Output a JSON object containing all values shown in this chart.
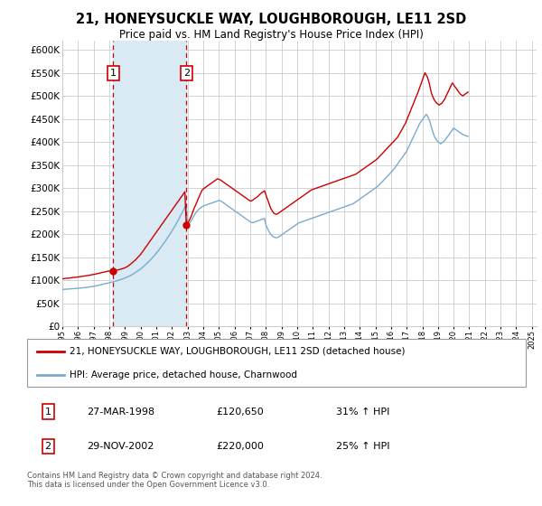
{
  "title": "21, HONEYSUCKLE WAY, LOUGHBOROUGH, LE11 2SD",
  "subtitle": "Price paid vs. HM Land Registry's House Price Index (HPI)",
  "footer": "Contains HM Land Registry data © Crown copyright and database right 2024.\nThis data is licensed under the Open Government Licence v3.0.",
  "legend_line1": "21, HONEYSUCKLE WAY, LOUGHBOROUGH, LE11 2SD (detached house)",
  "legend_line2": "HPI: Average price, detached house, Charnwood",
  "purchase1_date": "27-MAR-1998",
  "purchase1_price": "£120,650",
  "purchase1_hpi": "31% ↑ HPI",
  "purchase1_year": 1998.25,
  "purchase1_value": 120650,
  "purchase2_date": "29-NOV-2002",
  "purchase2_price": "£220,000",
  "purchase2_hpi": "25% ↑ HPI",
  "purchase2_year": 2002.92,
  "purchase2_value": 220000,
  "xlim": [
    1995,
    2025.3
  ],
  "ylim": [
    0,
    620000
  ],
  "yticks": [
    0,
    50000,
    100000,
    150000,
    200000,
    250000,
    300000,
    350000,
    400000,
    450000,
    500000,
    550000,
    600000
  ],
  "ytick_labels": [
    "£0",
    "£50K",
    "£100K",
    "£150K",
    "£200K",
    "£250K",
    "£300K",
    "£350K",
    "£400K",
    "£450K",
    "£500K",
    "£550K",
    "£600K"
  ],
  "background_color": "#ffffff",
  "grid_color": "#cccccc",
  "red_line_color": "#cc0000",
  "blue_line_color": "#7aabcf",
  "shade_color": "#daeaf5",
  "dashed_line_color": "#cc0000",
  "marker_box_color": "#cc0000",
  "years": [
    1995.0,
    1995.08,
    1995.17,
    1995.25,
    1995.33,
    1995.42,
    1995.5,
    1995.58,
    1995.67,
    1995.75,
    1995.83,
    1995.92,
    1996.0,
    1996.08,
    1996.17,
    1996.25,
    1996.33,
    1996.42,
    1996.5,
    1996.58,
    1996.67,
    1996.75,
    1996.83,
    1996.92,
    1997.0,
    1997.08,
    1997.17,
    1997.25,
    1997.33,
    1997.42,
    1997.5,
    1997.58,
    1997.67,
    1997.75,
    1997.83,
    1997.92,
    1998.0,
    1998.08,
    1998.17,
    1998.25,
    1998.33,
    1998.42,
    1998.5,
    1998.58,
    1998.67,
    1998.75,
    1998.83,
    1998.92,
    1999.0,
    1999.08,
    1999.17,
    1999.25,
    1999.33,
    1999.42,
    1999.5,
    1999.58,
    1999.67,
    1999.75,
    1999.83,
    1999.92,
    2000.0,
    2000.08,
    2000.17,
    2000.25,
    2000.33,
    2000.42,
    2000.5,
    2000.58,
    2000.67,
    2000.75,
    2000.83,
    2000.92,
    2001.0,
    2001.08,
    2001.17,
    2001.25,
    2001.33,
    2001.42,
    2001.5,
    2001.58,
    2001.67,
    2001.75,
    2001.83,
    2001.92,
    2002.0,
    2002.08,
    2002.17,
    2002.25,
    2002.33,
    2002.42,
    2002.5,
    2002.58,
    2002.67,
    2002.75,
    2002.83,
    2002.92,
    2003.0,
    2003.08,
    2003.17,
    2003.25,
    2003.33,
    2003.42,
    2003.5,
    2003.58,
    2003.67,
    2003.75,
    2003.83,
    2003.92,
    2004.0,
    2004.08,
    2004.17,
    2004.25,
    2004.33,
    2004.42,
    2004.5,
    2004.58,
    2004.67,
    2004.75,
    2004.83,
    2004.92,
    2005.0,
    2005.08,
    2005.17,
    2005.25,
    2005.33,
    2005.42,
    2005.5,
    2005.58,
    2005.67,
    2005.75,
    2005.83,
    2005.92,
    2006.0,
    2006.08,
    2006.17,
    2006.25,
    2006.33,
    2006.42,
    2006.5,
    2006.58,
    2006.67,
    2006.75,
    2006.83,
    2006.92,
    2007.0,
    2007.08,
    2007.17,
    2007.25,
    2007.33,
    2007.42,
    2007.5,
    2007.58,
    2007.67,
    2007.75,
    2007.83,
    2007.92,
    2008.0,
    2008.08,
    2008.17,
    2008.25,
    2008.33,
    2008.42,
    2008.5,
    2008.58,
    2008.67,
    2008.75,
    2008.83,
    2008.92,
    2009.0,
    2009.08,
    2009.17,
    2009.25,
    2009.33,
    2009.42,
    2009.5,
    2009.58,
    2009.67,
    2009.75,
    2009.83,
    2009.92,
    2010.0,
    2010.08,
    2010.17,
    2010.25,
    2010.33,
    2010.42,
    2010.5,
    2010.58,
    2010.67,
    2010.75,
    2010.83,
    2010.92,
    2011.0,
    2011.08,
    2011.17,
    2011.25,
    2011.33,
    2011.42,
    2011.5,
    2011.58,
    2011.67,
    2011.75,
    2011.83,
    2011.92,
    2012.0,
    2012.08,
    2012.17,
    2012.25,
    2012.33,
    2012.42,
    2012.5,
    2012.58,
    2012.67,
    2012.75,
    2012.83,
    2012.92,
    2013.0,
    2013.08,
    2013.17,
    2013.25,
    2013.33,
    2013.42,
    2013.5,
    2013.58,
    2013.67,
    2013.75,
    2013.83,
    2013.92,
    2014.0,
    2014.08,
    2014.17,
    2014.25,
    2014.33,
    2014.42,
    2014.5,
    2014.58,
    2014.67,
    2014.75,
    2014.83,
    2014.92,
    2015.0,
    2015.08,
    2015.17,
    2015.25,
    2015.33,
    2015.42,
    2015.5,
    2015.58,
    2015.67,
    2015.75,
    2015.83,
    2015.92,
    2016.0,
    2016.08,
    2016.17,
    2016.25,
    2016.33,
    2016.42,
    2016.5,
    2016.58,
    2016.67,
    2016.75,
    2016.83,
    2016.92,
    2017.0,
    2017.08,
    2017.17,
    2017.25,
    2017.33,
    2017.42,
    2017.5,
    2017.58,
    2017.67,
    2017.75,
    2017.83,
    2017.92,
    2018.0,
    2018.08,
    2018.17,
    2018.25,
    2018.33,
    2018.42,
    2018.5,
    2018.58,
    2018.67,
    2018.75,
    2018.83,
    2018.92,
    2019.0,
    2019.08,
    2019.17,
    2019.25,
    2019.33,
    2019.42,
    2019.5,
    2019.58,
    2019.67,
    2019.75,
    2019.83,
    2019.92,
    2020.0,
    2020.08,
    2020.17,
    2020.25,
    2020.33,
    2020.42,
    2020.5,
    2020.58,
    2020.67,
    2020.75,
    2020.83,
    2020.92,
    2021.0,
    2021.08,
    2021.17,
    2021.25,
    2021.33,
    2021.42,
    2021.5,
    2021.58,
    2021.67,
    2021.75,
    2021.83,
    2021.92,
    2022.0,
    2022.08,
    2022.17,
    2022.25,
    2022.33,
    2022.42,
    2022.5,
    2022.58,
    2022.67,
    2022.75,
    2022.83,
    2022.92,
    2023.0,
    2023.08,
    2023.17,
    2023.25,
    2023.33,
    2023.42,
    2023.5,
    2023.58,
    2023.67,
    2023.75,
    2023.83,
    2023.92,
    2024.0,
    2024.08,
    2024.17,
    2024.25,
    2024.33,
    2024.42,
    2024.5,
    2024.58,
    2024.67,
    2024.75,
    2024.83,
    2024.92,
    2025.0
  ],
  "red_values": [
    103000,
    103500,
    104000,
    104200,
    104500,
    104800,
    105000,
    105500,
    106000,
    106200,
    106500,
    106800,
    107000,
    107500,
    108000,
    108300,
    108800,
    109200,
    109800,
    110200,
    110500,
    111000,
    111500,
    112000,
    112500,
    113000,
    113800,
    114500,
    115000,
    115800,
    116500,
    117000,
    117800,
    118500,
    119000,
    119800,
    120000,
    120200,
    120400,
    120650,
    121000,
    121500,
    122000,
    122800,
    123500,
    124200,
    125000,
    126000,
    127000,
    128500,
    130000,
    132000,
    134000,
    136500,
    139000,
    141500,
    144000,
    147000,
    150000,
    153000,
    156000,
    160000,
    164000,
    168000,
    172000,
    176000,
    180000,
    184000,
    188000,
    192000,
    196000,
    200000,
    204000,
    208000,
    212000,
    216000,
    220000,
    224000,
    228000,
    232000,
    236000,
    240000,
    244000,
    248000,
    252000,
    256000,
    260000,
    264000,
    268000,
    272000,
    276000,
    280000,
    284000,
    288000,
    292000,
    220000,
    222000,
    228000,
    234000,
    240000,
    248000,
    256000,
    262000,
    268000,
    276000,
    282000,
    288000,
    295000,
    298000,
    300000,
    302000,
    304000,
    306000,
    308000,
    310000,
    312000,
    314000,
    316000,
    318000,
    320000,
    319000,
    318000,
    316000,
    314000,
    312000,
    310000,
    308000,
    306000,
    304000,
    302000,
    300000,
    298000,
    296000,
    294000,
    292000,
    290000,
    288000,
    286000,
    284000,
    282000,
    280000,
    278000,
    276000,
    274000,
    272000,
    272000,
    274000,
    276000,
    278000,
    280000,
    282000,
    285000,
    288000,
    290000,
    292000,
    294000,
    286000,
    278000,
    270000,
    262000,
    255000,
    250000,
    246000,
    244000,
    243000,
    244000,
    246000,
    248000,
    250000,
    252000,
    254000,
    256000,
    258000,
    260000,
    262000,
    264000,
    266000,
    268000,
    270000,
    272000,
    274000,
    276000,
    278000,
    280000,
    282000,
    284000,
    286000,
    288000,
    290000,
    292000,
    294000,
    296000,
    297000,
    298000,
    299000,
    300000,
    301000,
    302000,
    303000,
    304000,
    305000,
    306000,
    307000,
    308000,
    309000,
    310000,
    311000,
    312000,
    313000,
    314000,
    315000,
    316000,
    317000,
    318000,
    319000,
    320000,
    321000,
    322000,
    323000,
    324000,
    325000,
    326000,
    327000,
    328000,
    329000,
    330000,
    332000,
    334000,
    336000,
    338000,
    340000,
    342000,
    344000,
    346000,
    348000,
    350000,
    352000,
    354000,
    356000,
    358000,
    360000,
    362000,
    365000,
    368000,
    371000,
    374000,
    377000,
    380000,
    383000,
    386000,
    389000,
    392000,
    395000,
    398000,
    401000,
    404000,
    407000,
    410000,
    415000,
    420000,
    425000,
    430000,
    435000,
    440000,
    447000,
    454000,
    461000,
    468000,
    475000,
    482000,
    489000,
    496000,
    503000,
    510000,
    518000,
    526000,
    534000,
    542000,
    550000,
    545000,
    540000,
    530000,
    518000,
    506000,
    498000,
    492000,
    488000,
    484000,
    482000,
    480000,
    482000,
    484000,
    488000,
    492000,
    498000,
    504000,
    510000,
    516000,
    522000,
    528000,
    524000,
    520000,
    516000,
    512000,
    508000,
    504000,
    502000,
    500000,
    502000,
    504000,
    506000,
    508000
  ],
  "blue_values": [
    80000,
    80200,
    80400,
    80600,
    80800,
    81000,
    81200,
    81400,
    81600,
    81800,
    82000,
    82200,
    82500,
    82800,
    83100,
    83400,
    83700,
    84000,
    84300,
    84700,
    85100,
    85500,
    85900,
    86400,
    86900,
    87400,
    88000,
    88600,
    89200,
    89800,
    90400,
    91000,
    91700,
    92400,
    93100,
    93800,
    94500,
    95200,
    95900,
    96700,
    97500,
    98300,
    99100,
    100000,
    100900,
    101800,
    102800,
    103800,
    104800,
    106000,
    107200,
    108500,
    110000,
    111500,
    113000,
    114800,
    116600,
    118500,
    120500,
    122500,
    124500,
    126800,
    129200,
    131700,
    134300,
    137000,
    139800,
    142700,
    145700,
    148800,
    152000,
    155200,
    158500,
    162000,
    165500,
    169200,
    173000,
    177000,
    181000,
    185000,
    189200,
    193500,
    197800,
    202200,
    206700,
    211300,
    216000,
    221000,
    226000,
    231000,
    236500,
    242000,
    247500,
    253000,
    258500,
    264000,
    220000,
    222000,
    226000,
    230000,
    235000,
    240000,
    245000,
    249000,
    252000,
    255000,
    257000,
    259000,
    261000,
    262000,
    263000,
    264000,
    265000,
    266000,
    267000,
    268000,
    269000,
    270000,
    271000,
    272000,
    273000,
    272000,
    271000,
    269000,
    267000,
    265000,
    263000,
    261000,
    259000,
    257000,
    255000,
    253000,
    251000,
    249000,
    247000,
    245000,
    243000,
    241000,
    239000,
    237000,
    235000,
    233000,
    231000,
    229000,
    227000,
    225000,
    225000,
    226000,
    227000,
    228000,
    229000,
    230000,
    231000,
    232000,
    233000,
    234000,
    221000,
    214000,
    208000,
    203000,
    199000,
    196000,
    194000,
    193000,
    192000,
    193000,
    194000,
    196000,
    198000,
    200000,
    202000,
    204000,
    206000,
    208000,
    210000,
    212000,
    214000,
    216000,
    218000,
    220000,
    222000,
    224000,
    225000,
    226000,
    227000,
    228000,
    229000,
    230000,
    231000,
    232000,
    233000,
    234000,
    235000,
    236000,
    237000,
    238000,
    239000,
    240000,
    241000,
    242000,
    243000,
    244000,
    245000,
    246000,
    247000,
    248000,
    249000,
    250000,
    251000,
    252000,
    253000,
    254000,
    255000,
    256000,
    257000,
    258000,
    259000,
    260000,
    261000,
    262000,
    263000,
    264000,
    265000,
    266000,
    268000,
    270000,
    272000,
    274000,
    276000,
    278000,
    280000,
    282000,
    284000,
    286000,
    288000,
    290000,
    292000,
    294000,
    296000,
    298000,
    300000,
    302000,
    304000,
    307000,
    310000,
    313000,
    316000,
    319000,
    322000,
    325000,
    328000,
    331000,
    334000,
    337000,
    340000,
    344000,
    348000,
    352000,
    356000,
    360000,
    364000,
    368000,
    372000,
    376000,
    380000,
    386000,
    392000,
    398000,
    404000,
    410000,
    416000,
    422000,
    428000,
    434000,
    440000,
    444000,
    448000,
    452000,
    456000,
    460000,
    456000,
    450000,
    442000,
    432000,
    422000,
    414000,
    408000,
    404000,
    400000,
    398000,
    396000,
    398000,
    400000,
    403000,
    406000,
    410000,
    414000,
    418000,
    422000,
    426000,
    430000,
    428000,
    426000,
    424000,
    422000,
    420000,
    418000,
    416000,
    415000,
    414000,
    413000,
    412000,
    410000
  ]
}
